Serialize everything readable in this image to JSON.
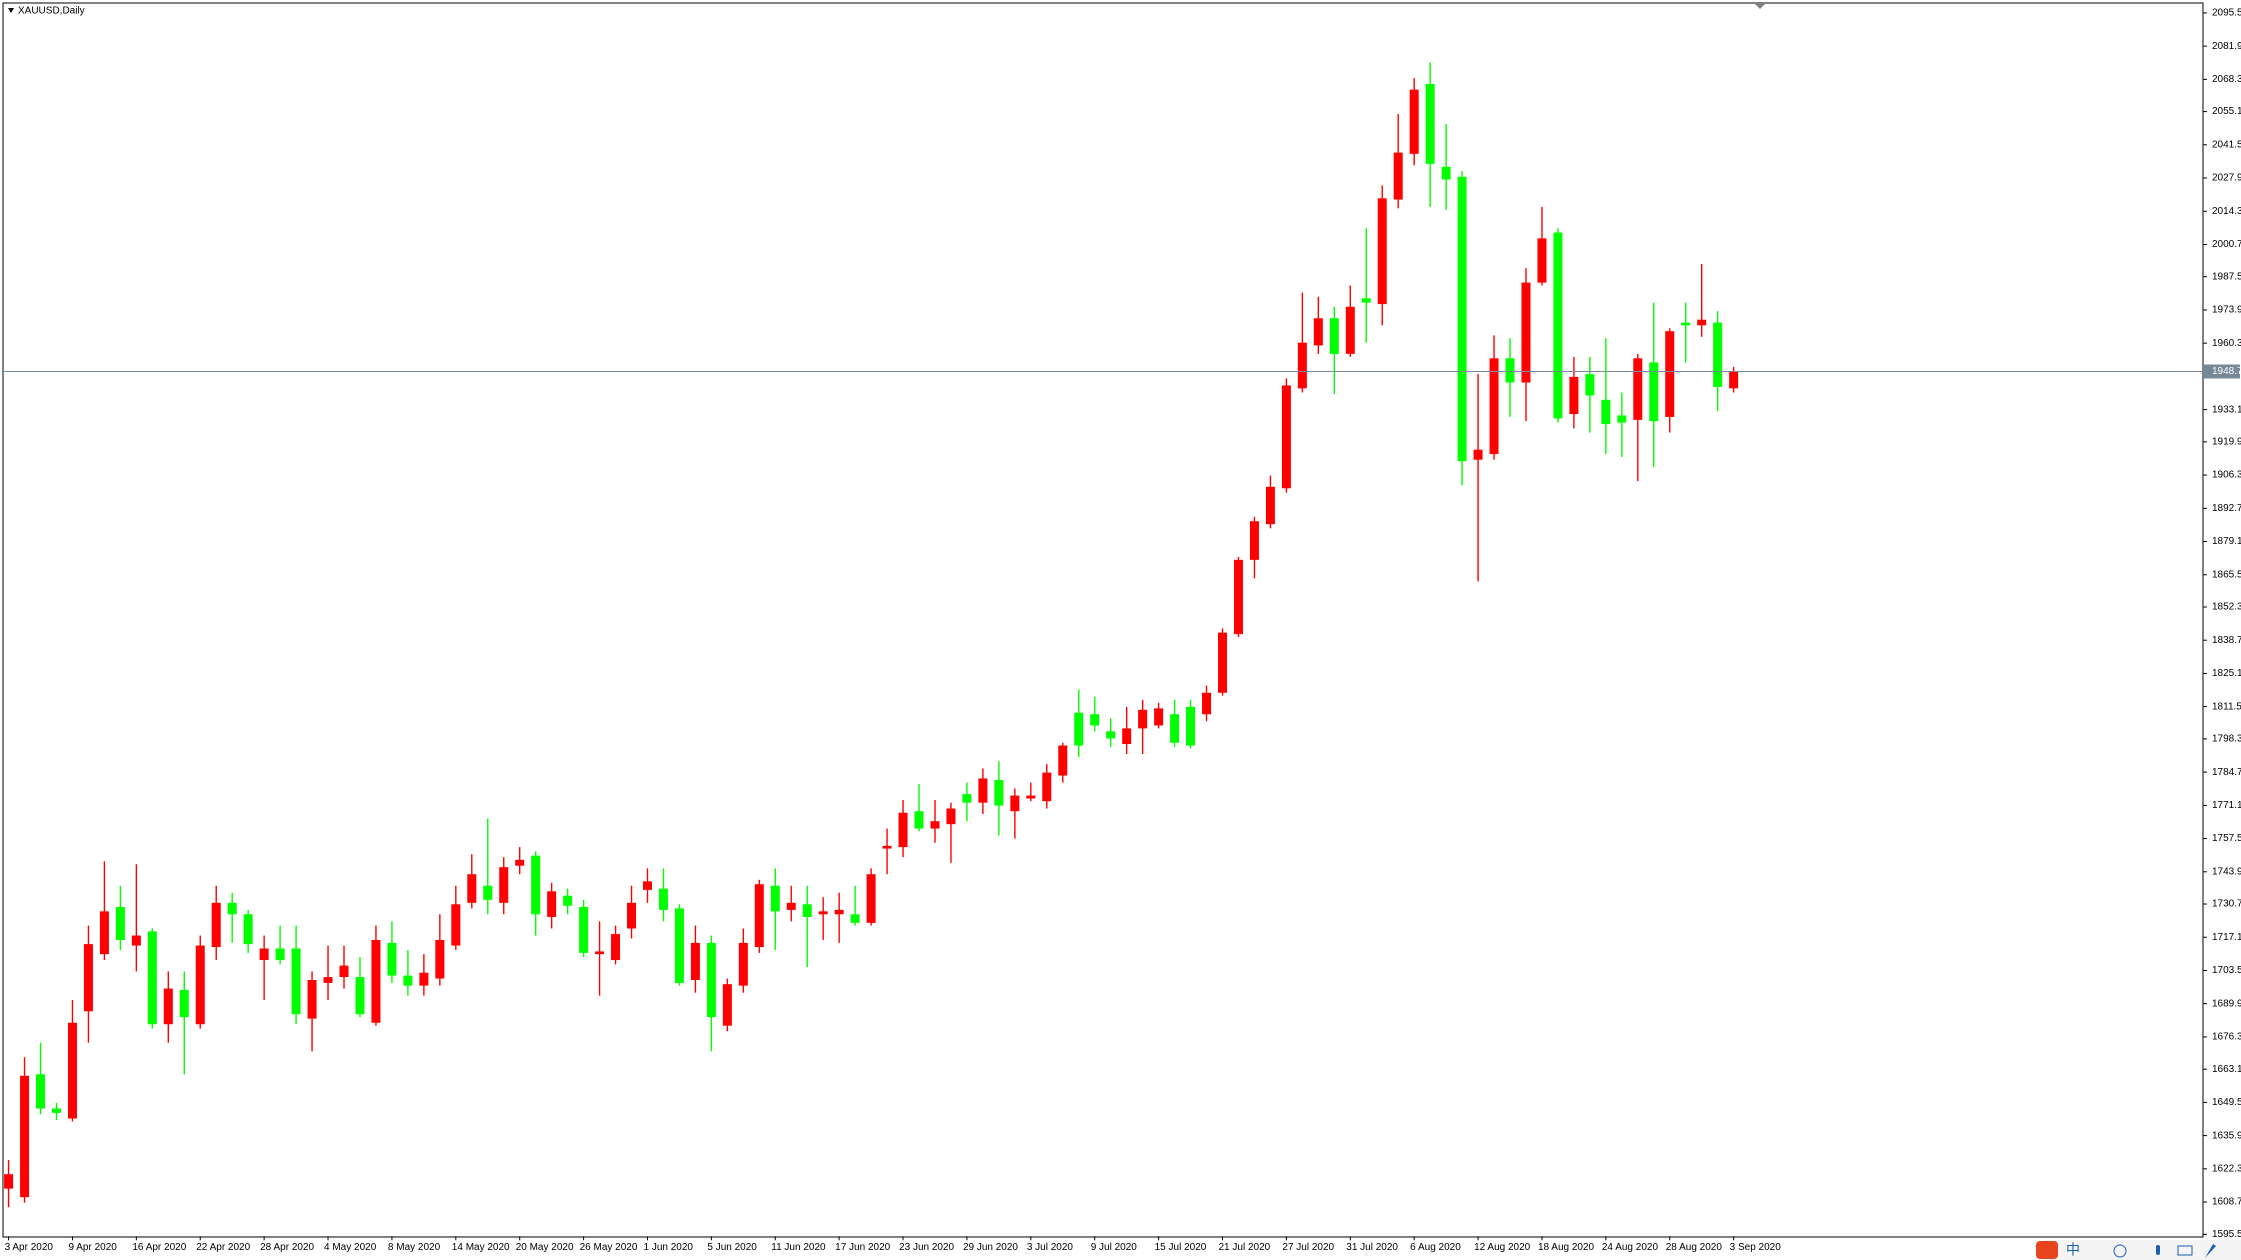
{
  "chart_data": {
    "type": "candlestick",
    "title": "XAUUSD,Daily",
    "categories": [
      "3 Apr 2020",
      null,
      null,
      null,
      "9 Apr 2020",
      null,
      null,
      null,
      "16 Apr 2020",
      null,
      null,
      null,
      "22 Apr 2020",
      null,
      null,
      null,
      "28 Apr 2020",
      null,
      null,
      null,
      "4 May 2020",
      null,
      null,
      null,
      "8 May 2020",
      null,
      null,
      null,
      "14 May 2020",
      null,
      null,
      null,
      "20 May 2020",
      null,
      null,
      null,
      "26 May 2020",
      null,
      null,
      null,
      "1 Jun 2020",
      null,
      null,
      null,
      "5 Jun 2020",
      null,
      null,
      null,
      "11 Jun 2020",
      null,
      null,
      null,
      "17 Jun 2020",
      null,
      null,
      null,
      "23 Jun 2020",
      null,
      null,
      null,
      "29 Jun 2020",
      null,
      null,
      null,
      "3 Jul 2020",
      null,
      null,
      null,
      "9 Jul 2020",
      null,
      null,
      null,
      "15 Jul 2020",
      null,
      null,
      null,
      "21 Jul 2020",
      null,
      null,
      null,
      "27 Jul 2020",
      null,
      null,
      null,
      "31 Jul 2020",
      null,
      null,
      null,
      "6 Aug 2020",
      null,
      null,
      null,
      "12 Aug 2020",
      null,
      null,
      null,
      "18 Aug 2020",
      null,
      null,
      null,
      "24 Aug 2020",
      null,
      null,
      null,
      "28 Aug 2020",
      null,
      null,
      null,
      "3 Sep 2020"
    ],
    "open": [
      1614.2,
      1610.7,
      1661,
      1647,
      1642.9,
      1686.8,
      1710.2,
      1729.5,
      1713.7,
      1719.5,
      1681.5,
      1695.5,
      1681.5,
      1713.1,
      1731.2,
      1726.5,
      1707.8,
      1712.5,
      1712.5,
      1683.8,
      1698.4,
      1700.8,
      1700.8,
      1682.1,
      1714.8,
      1701.4,
      1697.3,
      1700.2,
      1713.7,
      1731.2,
      1738.2,
      1731.2,
      1746.4,
      1750.5,
      1725.4,
      1734.1,
      1729.5,
      1710.2,
      1707.8,
      1720.7,
      1736.5,
      1737,
      1728.9,
      1699.6,
      1714.8,
      1680.9,
      1697.3,
      1713.1,
      1738.2,
      1728.3,
      1730.6,
      1726.5,
      1726.5,
      1726.5,
      1723,
      1753.4,
      1754,
      1768.7,
      1761.6,
      1763.4,
      1775.7,
      1772.2,
      1781.5,
      1768.7,
      1773.9,
      1772.8,
      1783.3,
      1809,
      1808.4,
      1801.4,
      1796.2,
      1802.6,
      1803.8,
      1808.4,
      1811.4,
      1808.4,
      1817.2,
      1841.2,
      1871.6,
      1886.2,
      1900.9,
      1941.8,
      1959.4,
      1970.5,
      1955.9,
      1978.7,
      1976.3,
      2019.1,
      2037.8,
      2066.4,
      2032.5,
      2028.4,
      1912.6,
      1914.9,
      1954.1,
      1944.2,
      1985.1,
      2005.6,
      1931.3,
      1947.6,
      1937.1,
      1930.7,
      1928.9,
      1952.4,
      1930.1,
      1968.7,
      1967.6,
      1968.7,
      1941.8
    ],
    "high": [
      1625.9,
      1668,
      1673.9,
      1649.3,
      1691.4,
      1721.9,
      1748.2,
      1738.2,
      1747,
      1720.7,
      1703.1,
      1703.1,
      1717.8,
      1738.2,
      1735.3,
      1728.3,
      1717.8,
      1721.9,
      1721.9,
      1703.1,
      1713.7,
      1713.7,
      1709,
      1721.9,
      1723.6,
      1711.9,
      1710.2,
      1726.5,
      1738.2,
      1751.1,
      1765.7,
      1749.9,
      1754,
      1752.3,
      1739.4,
      1737,
      1732.4,
      1723.6,
      1721.9,
      1738.2,
      1745.3,
      1745.3,
      1730.6,
      1721.9,
      1717.8,
      1700.2,
      1720.7,
      1740.6,
      1745.3,
      1738.2,
      1738.2,
      1733.5,
      1735.3,
      1738.2,
      1745.3,
      1761.6,
      1773.3,
      1779.8,
      1773.3,
      1772.2,
      1780.4,
      1786.2,
      1789.1,
      1778,
      1780.4,
      1788,
      1796.7,
      1818.4,
      1815.5,
      1806.7,
      1811.4,
      1814.3,
      1813.1,
      1814.3,
      1814.3,
      1820.1,
      1843.5,
      1872.8,
      1889.2,
      1906.1,
      1945.9,
      1981,
      1979.3,
      1975.2,
      1983.9,
      2007.3,
      2024.9,
      2054.1,
      2068.8,
      2075.2,
      2050,
      2030.7,
      1947.7,
      1963.5,
      1962.3,
      1991,
      2016.1,
      2007.3,
      1954.7,
      1954.7,
      1962.3,
      1940.1,
      1955.9,
      1976.9,
      1966.4,
      1976.9,
      1992.7,
      1973.4,
      1950.6
    ],
    "low": [
      1606.6,
      1608.4,
      1644.6,
      1642.3,
      1641.7,
      1673.9,
      1707.8,
      1711.9,
      1703.1,
      1679.7,
      1673.9,
      1661,
      1679.7,
      1707.8,
      1714.8,
      1710.7,
      1691.4,
      1706,
      1681.5,
      1670.4,
      1691.4,
      1696.1,
      1684.4,
      1680.9,
      1698.4,
      1693.2,
      1693.2,
      1697.3,
      1711.9,
      1728.9,
      1726.5,
      1726.5,
      1742.9,
      1717.8,
      1720.7,
      1726.5,
      1709,
      1693.2,
      1706,
      1716.6,
      1731.2,
      1723.6,
      1697.3,
      1694.4,
      1670.4,
      1678.6,
      1694.4,
      1710.7,
      1711.9,
      1723.6,
      1704.9,
      1716,
      1714.8,
      1721.9,
      1721.9,
      1742.9,
      1749.9,
      1760.5,
      1755.8,
      1747.6,
      1764.6,
      1767.5,
      1758.7,
      1757.5,
      1772.8,
      1769.8,
      1780.4,
      1790.9,
      1801.4,
      1795,
      1792.1,
      1792.1,
      1802.6,
      1795,
      1794.4,
      1805.5,
      1816,
      1840,
      1864,
      1884.5,
      1899.1,
      1940.1,
      1955.9,
      1939.5,
      1954.7,
      1960.5,
      1967.6,
      2015.5,
      2033.1,
      2016.1,
      2014.9,
      1902.1,
      1862.8,
      1912.6,
      1930.1,
      1928.4,
      1983.9,
      1927.8,
      1925.4,
      1923.7,
      1914.9,
      1913.7,
      1903.8,
      1909.6,
      1923.7,
      1952.4,
      1962.9,
      1932.5,
      1940.1
    ],
    "close": [
      1620.1,
      1660.4,
      1647,
      1645.2,
      1682.1,
      1714.3,
      1727.7,
      1716,
      1717.8,
      1681.5,
      1696.1,
      1684.4,
      1713.7,
      1731.2,
      1726.5,
      1714.3,
      1712.5,
      1707.8,
      1685.6,
      1699.6,
      1700.8,
      1705.5,
      1685.6,
      1716,
      1701.4,
      1697.3,
      1702.6,
      1716,
      1730.6,
      1742.9,
      1732.4,
      1745.8,
      1748.8,
      1726.5,
      1735.9,
      1730,
      1710.7,
      1711.3,
      1718.4,
      1731.2,
      1740,
      1728.3,
      1698.4,
      1714.8,
      1684.4,
      1697.9,
      1714.8,
      1738.8,
      1727.7,
      1731.2,
      1725.4,
      1727.7,
      1728.3,
      1723,
      1742.9,
      1754.5,
      1768.1,
      1761.6,
      1764.6,
      1769.8,
      1772.2,
      1782.1,
      1771,
      1775.1,
      1775.1,
      1784.5,
      1795.6,
      1795.6,
      1803.8,
      1798.5,
      1802.6,
      1810.2,
      1810.8,
      1796.7,
      1795.6,
      1817.2,
      1841.8,
      1871.6,
      1887.4,
      1901.5,
      1943,
      1960.5,
      1970.5,
      1955.9,
      1975.2,
      1976.9,
      2019.6,
      2038.3,
      2064.1,
      2033.7,
      2027.3,
      1912,
      1916.7,
      1954.1,
      1944.2,
      1985.1,
      2003.2,
      1929.5,
      1946.5,
      1938.9,
      1927.2,
      1927.8,
      1954.1,
      1928.4,
      1965.2,
      1967.6,
      1969.9,
      1942.4,
      1948.7
    ],
    "up_color": "#ff0000",
    "down_color": "#00ff00",
    "current_price": 1948.7,
    "price_line_color": "#778899",
    "ylim": [
      1595.5,
      2095.5
    ],
    "yticks": [
      1595.5,
      1608.7,
      1622.3,
      1635.9,
      1649.5,
      1663.1,
      1676.3,
      1689.9,
      1703.5,
      1717.1,
      1730.7,
      1743.9,
      1757.5,
      1771.1,
      1784.7,
      1798.3,
      1811.5,
      1825.1,
      1838.7,
      1852.3,
      1865.5,
      1879.1,
      1892.7,
      1906.3,
      1919.9,
      1933.1,
      1960.3,
      1973.9,
      1987.5,
      2000.7,
      2014.3,
      2027.9,
      2041.5,
      2055.1,
      2068.3,
      2081.9,
      2095.5
    ]
  },
  "ime_indicator": "中"
}
